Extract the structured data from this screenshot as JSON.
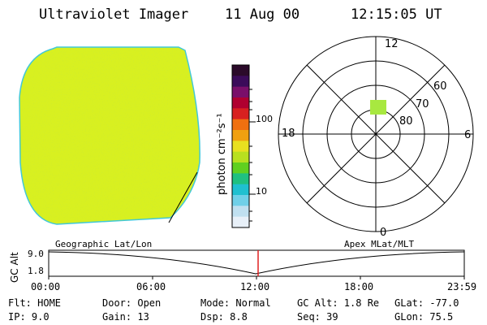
{
  "header": {
    "instrument": "Ultraviolet Imager",
    "date": "11 Aug 00",
    "time": "12:15:05 UT"
  },
  "colorbar": {
    "unit_label": "photon cm⁻²s⁻¹",
    "ticks": [
      "100",
      "10"
    ],
    "colors": [
      "#2b0a2a",
      "#3b0b5a",
      "#7a0f6a",
      "#b00030",
      "#d82020",
      "#f07010",
      "#f0a010",
      "#e8e020",
      "#b8e020",
      "#60d020",
      "#20c080",
      "#20c0d0",
      "#70d0e8",
      "#c0e0f0",
      "#e8f0f8"
    ]
  },
  "polar_plot": {
    "mlt_labels": [
      "12",
      "6",
      "0",
      "18"
    ],
    "lat_labels": [
      "60",
      "70",
      "80"
    ],
    "patch_color": "#a8e840"
  },
  "geo_image": {
    "fill_color": "#d8f020",
    "rim_color": "#40c8d8"
  },
  "altitude_panel": {
    "left_title": "Geographic Lat/Lon",
    "right_title": "Apex MLat/MLT",
    "ylabel": "GC Alt",
    "y_ticks": [
      "9.0",
      "1.8"
    ],
    "x_ticks": [
      "00:00",
      "06:00",
      "12:00",
      "18:00",
      "23:59"
    ],
    "marker_color": "#e02020"
  },
  "status": {
    "filter": "Flt: HOME",
    "ip": "IP:  9.0",
    "door": "Door: Open",
    "gain": "Gain: 13",
    "mode": "Mode: Normal",
    "dsp": "Dsp:     8.8",
    "gc_alt": "GC Alt: 1.8 Re",
    "seq": "Seq: 39",
    "glat": "GLat:  -77.0",
    "glon": "GLon:   75.5"
  }
}
